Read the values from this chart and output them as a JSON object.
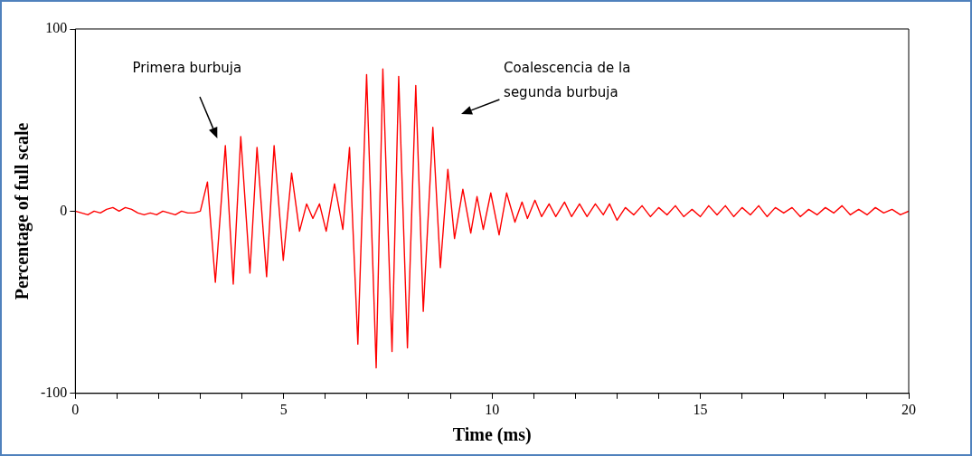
{
  "chart_data": {
    "type": "line",
    "xlabel": "Time (ms)",
    "ylabel": "Percentage of full scale",
    "xlim": [
      0,
      20
    ],
    "ylim": [
      -100,
      100
    ],
    "xticks": [
      0,
      {
        "value": 1,
        "label": null
      },
      {
        "value": 2,
        "label": null
      },
      {
        "value": 3,
        "label": null
      },
      {
        "value": 4,
        "label": null
      },
      5,
      {
        "value": 6,
        "label": null
      },
      {
        "value": 7,
        "label": null
      },
      {
        "value": 8,
        "label": null
      },
      {
        "value": 9,
        "label": null
      },
      10,
      {
        "value": 11,
        "label": null
      },
      {
        "value": 12,
        "label": null
      },
      {
        "value": 13,
        "label": null
      },
      {
        "value": 14,
        "label": null
      },
      15,
      {
        "value": 16,
        "label": null
      },
      {
        "value": 17,
        "label": null
      },
      {
        "value": 18,
        "label": null
      },
      {
        "value": 19,
        "label": null
      },
      20
    ],
    "yticks": [
      -100,
      0,
      100
    ],
    "grid": false,
    "legend": false,
    "marker": "none",
    "line_style": "solid",
    "annotations": [
      "Primera burbuja",
      "Coalescencia de la segunda burbuja"
    ],
    "series": [
      {
        "color": "#ff0000",
        "x": [
          0,
          0.15,
          0.3,
          0.45,
          0.6,
          0.75,
          0.9,
          1.05,
          1.2,
          1.35,
          1.5,
          1.65,
          1.8,
          1.95,
          2.1,
          2.25,
          2.4,
          2.55,
          2.7,
          2.85,
          3.0,
          3.17,
          3.36,
          3.6,
          3.79,
          3.97,
          4.19,
          4.36,
          4.59,
          4.77,
          4.99,
          5.19,
          5.38,
          5.55,
          5.7,
          5.86,
          6.02,
          6.22,
          6.42,
          6.58,
          6.78,
          6.99,
          7.22,
          7.38,
          7.6,
          7.76,
          7.97,
          8.17,
          8.35,
          8.58,
          8.76,
          8.94,
          9.1,
          9.3,
          9.49,
          9.64,
          9.79,
          9.97,
          10.17,
          10.35,
          10.55,
          10.72,
          10.85,
          11.03,
          11.19,
          11.37,
          11.53,
          11.74,
          11.91,
          12.1,
          12.28,
          12.48,
          12.67,
          12.82,
          13.0,
          13.2,
          13.4,
          13.6,
          13.8,
          14.0,
          14.2,
          14.4,
          14.6,
          14.8,
          15.0,
          15.2,
          15.4,
          15.6,
          15.8,
          16.0,
          16.2,
          16.4,
          16.6,
          16.8,
          17.0,
          17.2,
          17.4,
          17.6,
          17.8,
          18.0,
          18.2,
          18.4,
          18.6,
          18.8,
          19.0,
          19.2,
          19.4,
          19.6,
          19.8,
          20.0
        ],
        "values": [
          0,
          -1,
          -2,
          0,
          -1,
          1,
          2,
          0,
          2,
          1,
          -1,
          -2,
          -1,
          -2,
          0,
          -1,
          -2,
          0,
          -1,
          -1,
          0,
          16,
          -39,
          36,
          -40,
          41,
          -34,
          35,
          -36,
          36,
          -27,
          21,
          -11,
          4,
          -4,
          4,
          -11,
          15,
          -10,
          35,
          -73,
          75,
          -86,
          78,
          -77,
          74,
          -75,
          69,
          -55,
          46,
          -31,
          23,
          -15,
          12,
          -12,
          8,
          -10,
          10,
          -13,
          10,
          -6,
          5,
          -4,
          6,
          -3,
          4,
          -3,
          5,
          -3,
          4,
          -3,
          4,
          -2,
          4,
          -5,
          2,
          -2,
          3,
          -3,
          2,
          -2,
          3,
          -3,
          1,
          -3,
          3,
          -2,
          3,
          -3,
          2,
          -2,
          3,
          -3,
          2,
          -1,
          2,
          -3,
          1,
          -2,
          2,
          -1,
          3,
          -2,
          1,
          -2,
          2,
          -1,
          1,
          -2,
          0
        ]
      }
    ]
  }
}
